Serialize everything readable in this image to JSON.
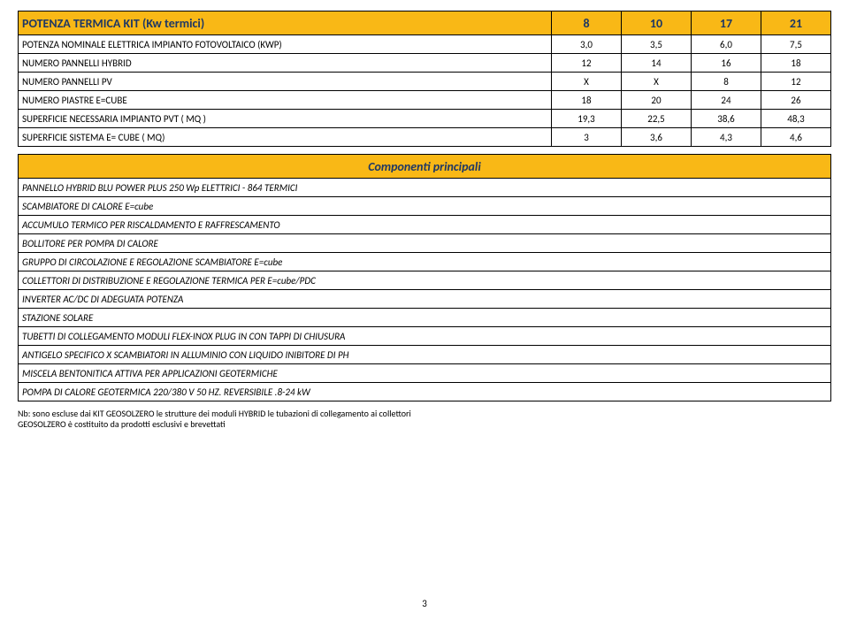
{
  "mainTable": {
    "headerLabel": "POTENZA TERMICA KIT (Kw termici)",
    "headerValues": [
      "8",
      "10",
      "17",
      "21"
    ],
    "rows": [
      {
        "label": "POTENZA NOMINALE ELETTRICA IMPIANTO FOTOVOLTAICO (KWP)",
        "v": [
          "3,0",
          "3,5",
          "6,0",
          "7,5"
        ]
      },
      {
        "label": "NUMERO PANNELLI HYBRID",
        "v": [
          "12",
          "14",
          "16",
          "18"
        ]
      },
      {
        "label": "NUMERO PANNELLI PV",
        "v": [
          "X",
          "X",
          "8",
          "12"
        ]
      },
      {
        "label": "NUMERO PIASTRE E=CUBE",
        "v": [
          "18",
          "20",
          "24",
          "26"
        ]
      },
      {
        "label": "SUPERFICIE NECESSARIA IMPIANTO PVT ( MQ )",
        "v": [
          "19,3",
          "22,5",
          "38,6",
          "48,3"
        ]
      },
      {
        "label": "SUPERFICIE SISTEMA E= CUBE ( MQ)",
        "v": [
          "3",
          "3,6",
          "4,3",
          "4,6"
        ]
      }
    ]
  },
  "components": {
    "header": "Componenti principali",
    "items": [
      "PANNELLO HYBRID BLU POWER PLUS 250 Wp ELETTRICI - 864 TERMICI",
      "SCAMBIATORE DI CALORE E=cube",
      "ACCUMULO TERMICO PER RISCALDAMENTO E RAFFRESCAMENTO",
      "BOLLITORE PER POMPA DI CALORE",
      "GRUPPO DI CIRCOLAZIONE E REGOLAZIONE SCAMBIATORE E=cube",
      "COLLETTORI DI DISTRIBUZIONE E REGOLAZIONE TERMICA PER E=cube/PDC",
      "INVERTER AC/DC DI ADEGUATA POTENZA",
      "STAZIONE SOLARE",
      "TUBETTI DI COLLEGAMENTO MODULI FLEX-INOX PLUG IN CON TAPPI DI CHIUSURA",
      "ANTIGELO SPECIFICO X SCAMBIATORI IN ALLUMINIO CON LIQUIDO INIBITORE DI PH",
      "MISCELA BENTONITICA ATTIVA PER APPLICAZIONI GEOTERMICHE",
      "POMPA DI CALORE GEOTERMICA 220/380 V 50 HZ. REVERSIBILE .8-24 kW"
    ]
  },
  "note": {
    "line1": "Nb: sono escluse dai KIT GEOSOLZERO le strutture dei moduli HYBRID le tubazioni di collegamento ai collettori",
    "line2": "GEOSOLZERO è costituito da prodotti esclusivi e brevettati"
  },
  "pageNumber": "3"
}
